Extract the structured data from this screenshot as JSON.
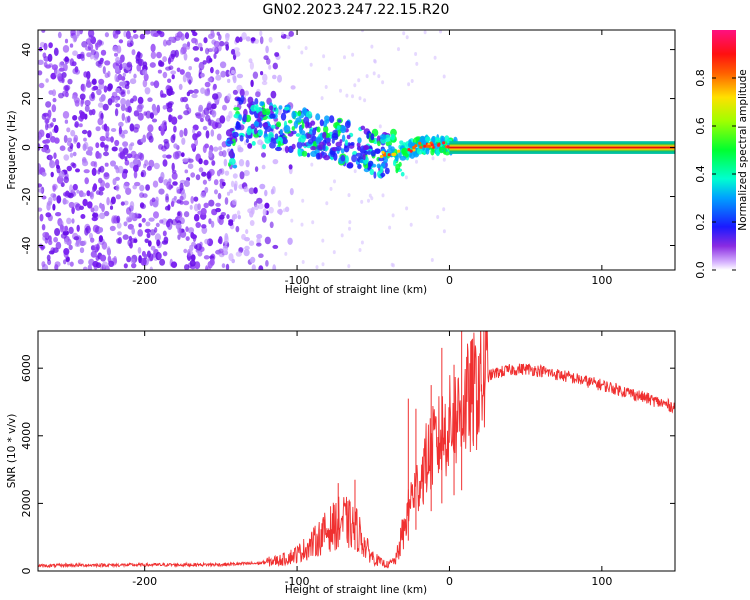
{
  "title": "GN02.2023.247.22.15.R20",
  "chart_data": [
    {
      "type": "heatmap",
      "name": "spectrogram",
      "xlabel": "Height of straight line (km)",
      "ylabel": "Frequency (Hz)",
      "xlim": [
        -270,
        148
      ],
      "ylim": [
        -50,
        48
      ],
      "xticks": [
        -200,
        -100,
        0,
        100
      ],
      "yticks": [
        -40,
        -20,
        0,
        20,
        40
      ],
      "colorbar": {
        "label": "Normalized spectral amplitude",
        "range": [
          0,
          1
        ],
        "ticks": [
          0.0,
          0.2,
          0.4,
          0.6,
          0.8
        ]
      },
      "signal_track": [
        {
          "x": -140,
          "y": 12
        },
        {
          "x": -120,
          "y": 9
        },
        {
          "x": -100,
          "y": 7
        },
        {
          "x": -80,
          "y": 4
        },
        {
          "x": -60,
          "y": 0
        },
        {
          "x": -45,
          "y": -3
        },
        {
          "x": -30,
          "y": -2
        },
        {
          "x": -20,
          "y": 1
        },
        {
          "x": 0,
          "y": 1
        },
        {
          "x": 50,
          "y": 0
        },
        {
          "x": 148,
          "y": 0
        }
      ]
    },
    {
      "type": "line",
      "name": "snr",
      "xlabel": "Height of straight line (km)",
      "ylabel": "SNR (10 * v/v)",
      "xlim": [
        -270,
        148
      ],
      "ylim": [
        0,
        7100
      ],
      "xticks": [
        -200,
        -100,
        0,
        100
      ],
      "yticks": [
        0,
        2000,
        4000,
        6000
      ],
      "series": [
        {
          "name": "SNR",
          "color": "#f03030",
          "x": [
            -270,
            -250,
            -200,
            -150,
            -125,
            -110,
            -100,
            -90,
            -80,
            -70,
            -60,
            -55,
            -50,
            -45,
            -40,
            -35,
            -30,
            -25,
            -20,
            -15,
            -10,
            -5,
            0,
            5,
            10,
            15,
            20,
            25,
            30,
            40,
            50,
            60,
            80,
            100,
            120,
            140,
            148
          ],
          "y": [
            150,
            170,
            180,
            190,
            230,
            330,
            500,
            800,
            1200,
            1500,
            1200,
            700,
            400,
            250,
            180,
            350,
            1200,
            2200,
            2600,
            3300,
            3700,
            4000,
            4300,
            4600,
            4900,
            5200,
            5550,
            5750,
            5850,
            5950,
            5980,
            5920,
            5720,
            5500,
            5250,
            4950,
            4850
          ],
          "spikes": [
            {
              "x": -73,
              "y": 2600
            },
            {
              "x": -62,
              "y": 2700
            },
            {
              "x": -27,
              "y": 5100
            },
            {
              "x": -22,
              "y": 4800
            },
            {
              "x": -12,
              "y": 5500
            },
            {
              "x": -5,
              "y": 6600
            },
            {
              "x": 3,
              "y": 6100
            },
            {
              "x": 8,
              "y": 7100
            }
          ]
        }
      ]
    }
  ]
}
